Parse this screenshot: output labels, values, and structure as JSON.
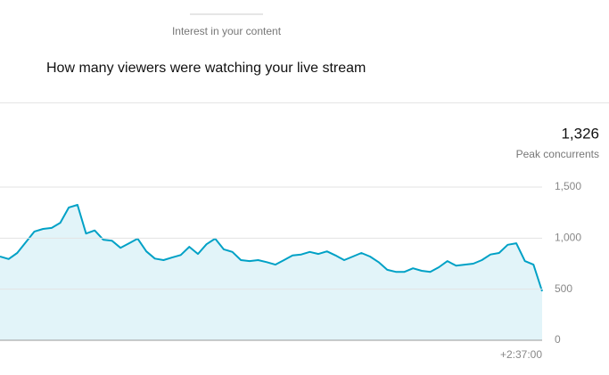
{
  "chart_data": {
    "type": "area",
    "header": "Interest in your content",
    "title": "How many viewers were watching your live stream",
    "peak": {
      "value": 1326,
      "label": "1,326"
    },
    "peak_caption": "Peak concurrents",
    "categories": [
      null,
      null,
      null,
      null,
      null,
      null,
      null,
      null,
      null,
      null,
      null,
      null,
      null,
      null,
      null,
      null,
      null,
      null,
      null,
      null,
      null,
      null,
      null,
      null,
      null,
      null,
      null,
      null,
      null,
      null,
      null,
      null,
      null,
      null,
      null,
      null,
      null,
      null,
      null,
      null,
      null,
      null,
      null,
      null,
      null,
      null,
      null,
      null,
      null,
      null,
      null,
      null,
      null,
      null,
      null,
      null,
      null,
      null,
      null,
      null,
      null,
      null,
      null,
      "+2:37:00"
    ],
    "series": [
      {
        "color": "#00a1c6",
        "fill_color": "#e2f4f9",
        "values": [
          820,
          795,
          855,
          960,
          1065,
          1090,
          1100,
          1150,
          1300,
          1326,
          1045,
          1075,
          985,
          975,
          905,
          950,
          995,
          870,
          800,
          785,
          810,
          835,
          915,
          845,
          940,
          995,
          890,
          865,
          785,
          775,
          785,
          765,
          740,
          785,
          830,
          840,
          865,
          845,
          870,
          830,
          785,
          820,
          855,
          820,
          765,
          690,
          670,
          670,
          705,
          680,
          670,
          715,
          775,
          730,
          740,
          750,
          785,
          840,
          855,
          935,
          950,
          775,
          740,
          480
        ]
      }
    ],
    "ylim": [
      0,
      1500
    ],
    "yticks": [
      0,
      500,
      {
        "value": 1000,
        "label": "1,000"
      },
      {
        "value": 1500,
        "label": "1,500"
      }
    ],
    "grid": true
  }
}
